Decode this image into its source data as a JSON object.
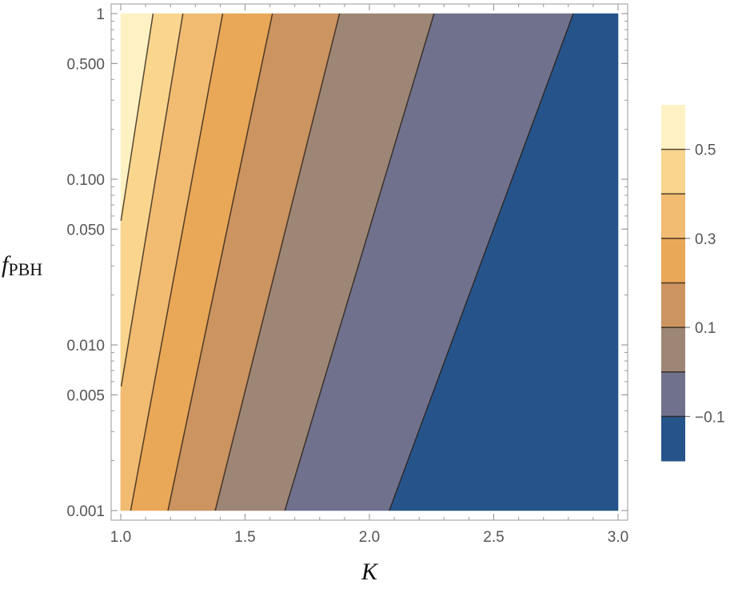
{
  "chart_data": {
    "type": "contour",
    "x": {
      "label": "K",
      "range": [
        1.0,
        3.0
      ],
      "ticks": [
        "1.0",
        "1.5",
        "2.0",
        "2.5",
        "3.0"
      ],
      "tick_values": [
        1.0,
        1.5,
        2.0,
        2.5,
        3.0
      ]
    },
    "y": {
      "label_main": "f",
      "label_sub": "PBH",
      "scale": "log",
      "range": [
        0.001,
        1
      ],
      "ticks": [
        "0.001",
        "0.005",
        "0.010",
        "0.050",
        "0.100",
        "0.500",
        "1"
      ],
      "tick_values": [
        0.001,
        0.005,
        0.01,
        0.05,
        0.1,
        0.5,
        1
      ]
    },
    "contour_levels": [
      0.5,
      0.4,
      0.3,
      0.2,
      0.1,
      0.0,
      -0.1
    ],
    "contour_lines": [
      {
        "level": 0.5,
        "points": [
          [
            1.0,
            0.055
          ],
          [
            1.13,
            1.0
          ]
        ]
      },
      {
        "level": 0.4,
        "points": [
          [
            1.0,
            0.0054
          ],
          [
            1.25,
            1.0
          ]
        ]
      },
      {
        "level": 0.3,
        "points": [
          [
            1.04,
            0.001
          ],
          [
            1.41,
            1.0
          ]
        ]
      },
      {
        "level": 0.2,
        "points": [
          [
            1.19,
            0.001
          ],
          [
            1.61,
            1.0
          ]
        ]
      },
      {
        "level": 0.1,
        "points": [
          [
            1.38,
            0.001
          ],
          [
            1.88,
            1.0
          ]
        ]
      },
      {
        "level": 0.0,
        "points": [
          [
            1.66,
            0.001
          ],
          [
            2.26,
            1.0
          ]
        ]
      },
      {
        "level": -0.1,
        "points": [
          [
            2.08,
            0.001
          ],
          [
            2.82,
            1.0
          ]
        ]
      }
    ],
    "bands": [
      {
        "range": [
          0.5,
          0.6
        ],
        "color": "#FEF2C4"
      },
      {
        "range": [
          0.4,
          0.5
        ],
        "color": "#F9D58E"
      },
      {
        "range": [
          0.3,
          0.4
        ],
        "color": "#F1BB72"
      },
      {
        "range": [
          0.2,
          0.3
        ],
        "color": "#E9A758"
      },
      {
        "range": [
          0.1,
          0.2
        ],
        "color": "#CB9460"
      },
      {
        "range": [
          0.0,
          0.1
        ],
        "color": "#9E8676"
      },
      {
        "range": [
          -0.1,
          0.0
        ],
        "color": "#70728D"
      },
      {
        "range": [
          -0.2,
          -0.1
        ],
        "color": "#26548A"
      }
    ],
    "colorbar": {
      "ticks": [
        "0.5",
        "0.3",
        "0.1",
        "−0.1"
      ],
      "tick_values": [
        0.5,
        0.3,
        0.1,
        -0.1
      ],
      "range": [
        -0.2,
        0.6
      ]
    },
    "grid": false,
    "legend": "right"
  }
}
